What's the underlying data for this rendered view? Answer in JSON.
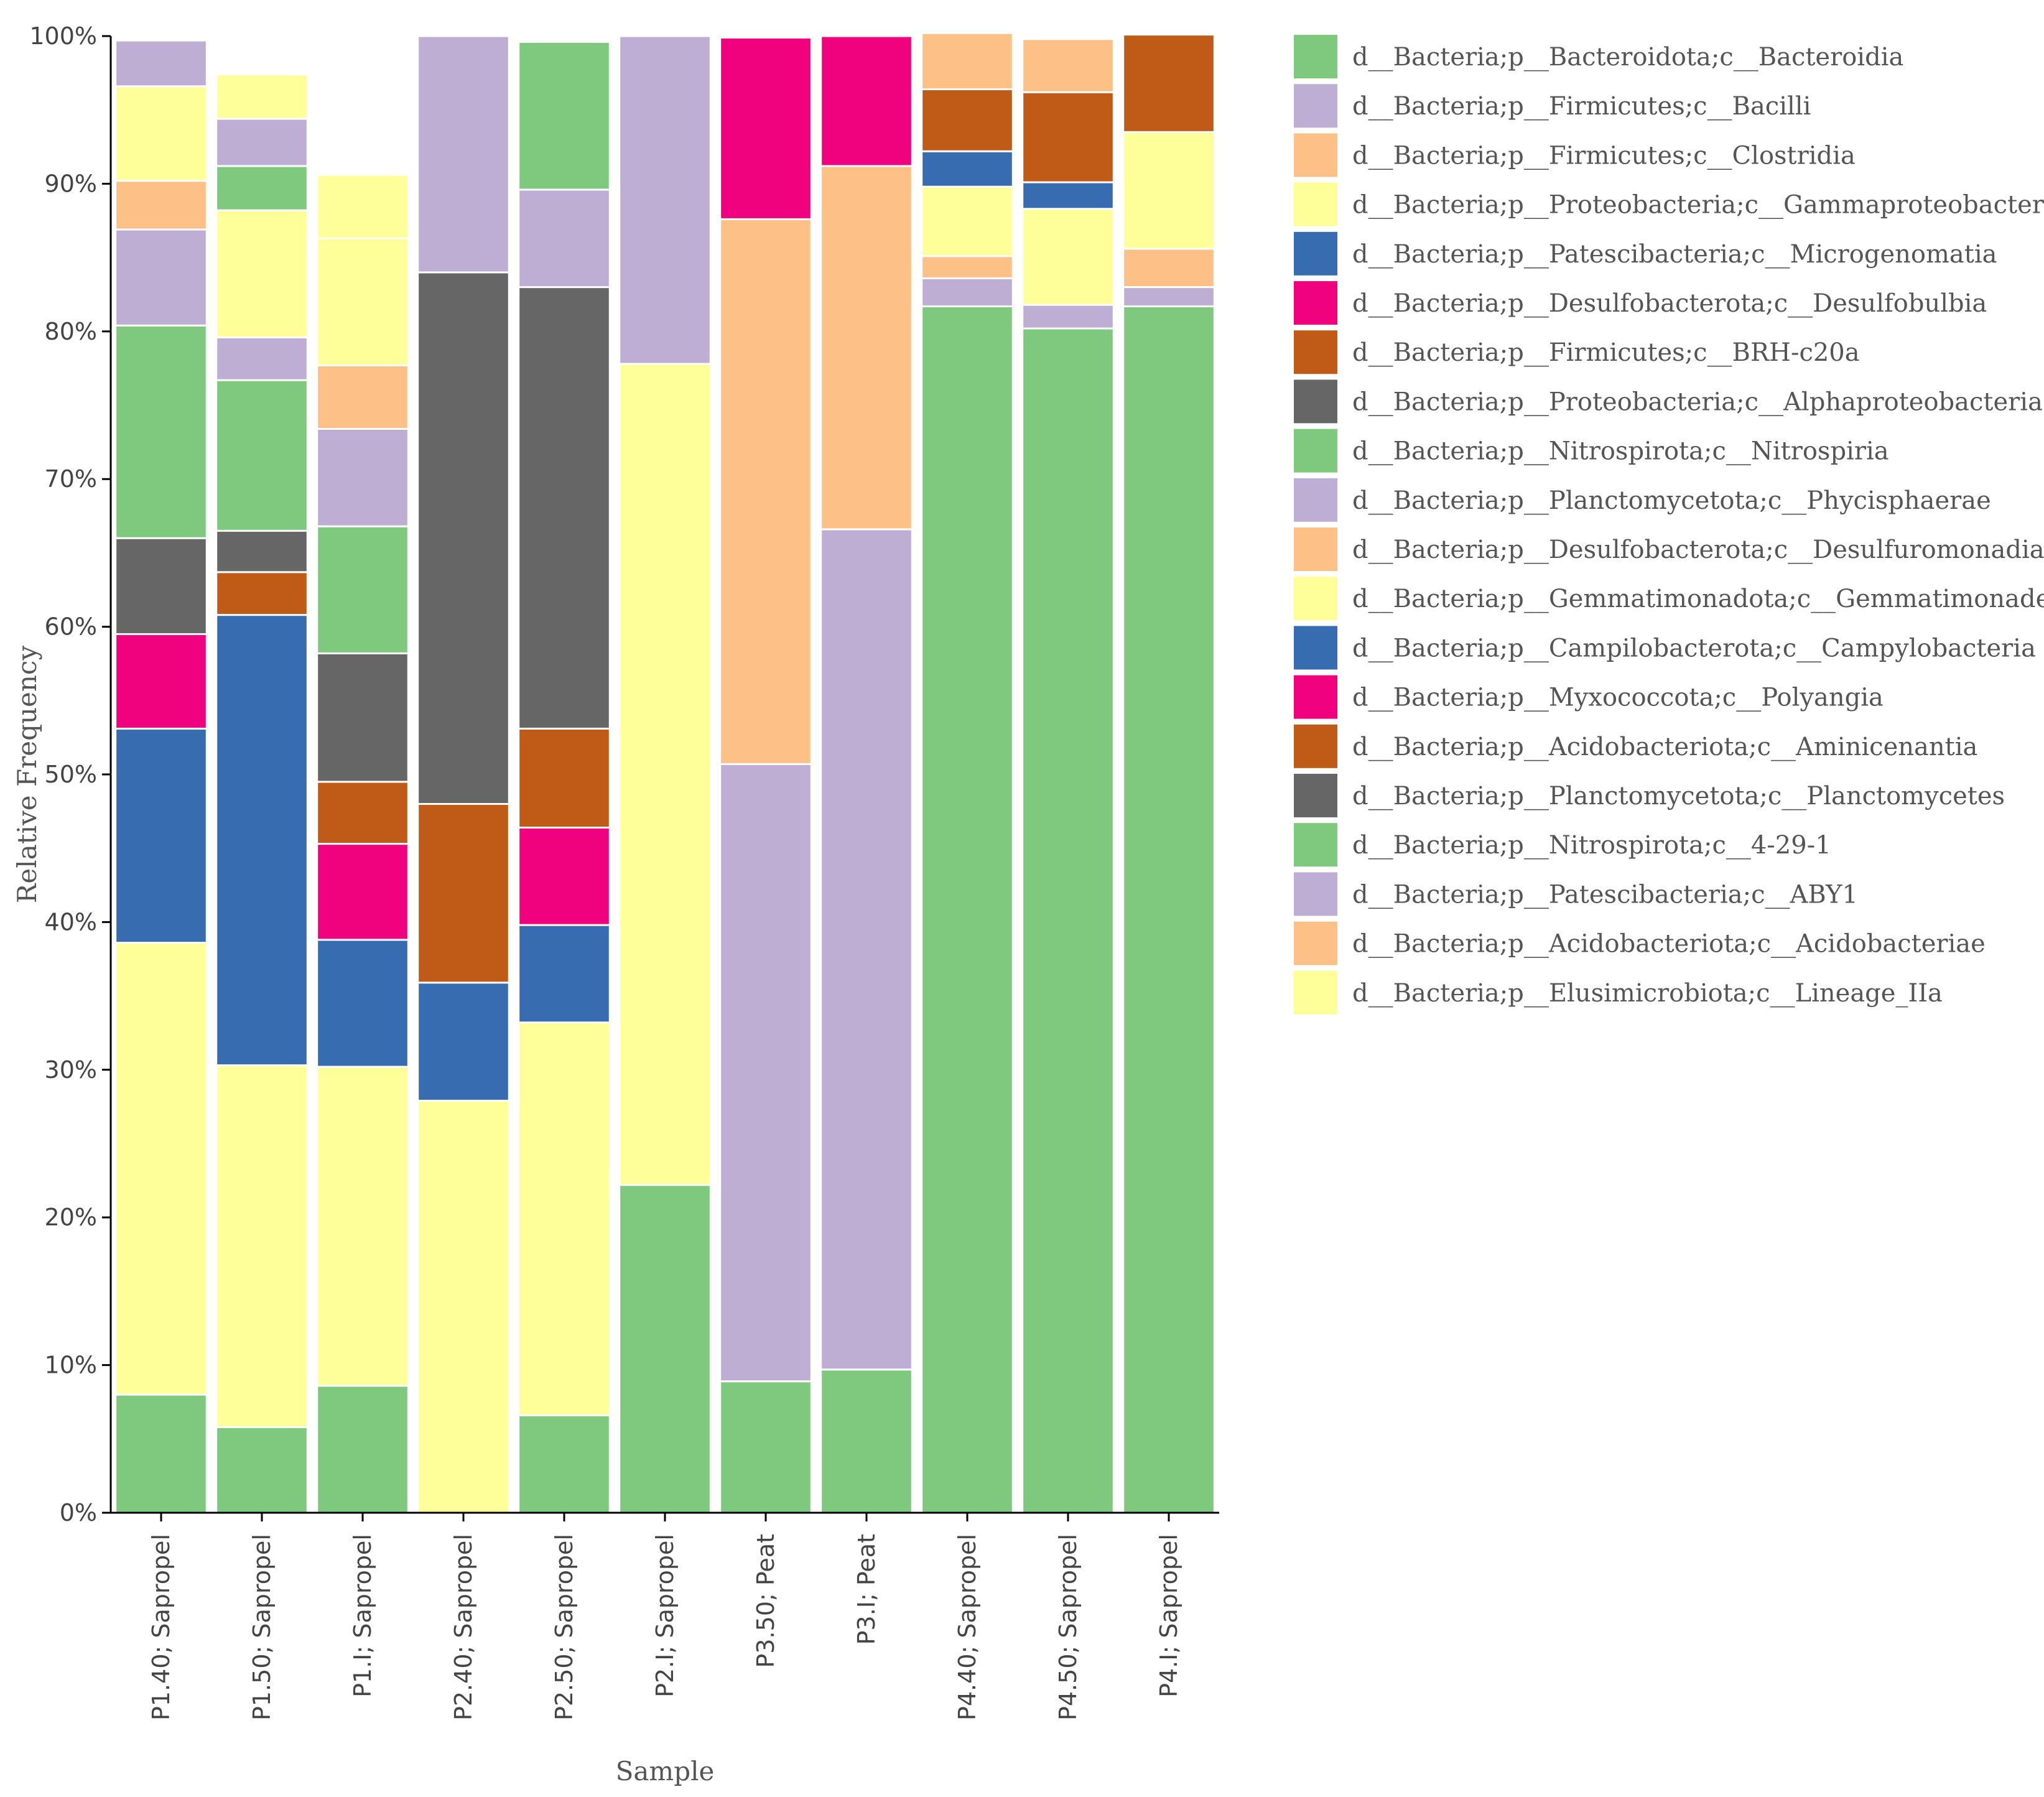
{
  "chart_data": {
    "type": "bar",
    "stacked": true,
    "xlabel": "Sample",
    "ylabel": "Relative Frequency",
    "ylim": [
      0,
      100
    ],
    "yticks": [
      "0%",
      "10%",
      "20%",
      "30%",
      "40%",
      "50%",
      "60%",
      "70%",
      "80%",
      "90%",
      "100%"
    ],
    "categories": [
      "P1.40; Sapropel",
      "P1.50; Sapropel",
      "P1.I; Sapropel",
      "P2.40; Sapropel",
      "P2.50; Sapropel",
      "P2.I; Sapropel",
      "P3.50; Peat",
      "P3.I; Peat",
      "P4.40; Sapropel",
      "P4.50; Sapropel",
      "P4.I; Sapropel"
    ],
    "series": [
      {
        "name": "d__Bacteria;p__Bacteroidota;c__Bacteroidia",
        "color": "#7fc97f",
        "values": [
          8.0,
          5.8,
          8.6,
          0.0,
          6.6,
          22.2,
          8.9,
          9.7,
          81.7,
          80.2,
          81.7
        ]
      },
      {
        "name": "d__Bacteria;p__Firmicutes;c__Bacilli",
        "color": "#beaed4",
        "values": [
          0.0,
          0.0,
          0.0,
          0.0,
          0.0,
          0.0,
          41.8,
          56.9,
          1.9,
          1.6,
          1.3
        ]
      },
      {
        "name": "d__Bacteria;p__Firmicutes;c__Clostridia",
        "color": "#fdc086",
        "values": [
          0.0,
          0.0,
          0.0,
          0.0,
          0.0,
          0.0,
          36.9,
          24.6,
          1.5,
          0.0,
          2.6
        ]
      },
      {
        "name": "d__Bacteria;p__Proteobacteria;c__Gammaproteobacteria",
        "color": "#ffff99",
        "values": [
          30.6,
          24.5,
          21.6,
          27.9,
          26.6,
          55.6,
          0.0,
          0.0,
          4.7,
          6.5,
          7.9
        ]
      },
      {
        "name": "d__Bacteria;p__Patescibacteria;c__Microgenomatia",
        "color": "#386cb0",
        "values": [
          14.5,
          30.5,
          8.6,
          8.0,
          6.6,
          0.0,
          0.0,
          0.0,
          2.4,
          1.8,
          0.0
        ]
      },
      {
        "name": "d__Bacteria;p__Desulfobacterota;c__Desulfobulbia",
        "color": "#f0027f",
        "values": [
          6.4,
          0.0,
          6.5,
          0.0,
          6.6,
          0.0,
          12.3,
          8.8,
          0.0,
          0.0,
          0.0
        ]
      },
      {
        "name": "d__Bacteria;p__Firmicutes;c__BRH-c20a",
        "color": "#bf5b17",
        "values": [
          0.0,
          2.9,
          4.2,
          12.1,
          6.7,
          0.0,
          0.0,
          0.0,
          4.2,
          6.1,
          6.6
        ]
      },
      {
        "name": "d__Bacteria;p__Proteobacteria;c__Alphaproteobacteria",
        "color": "#666666",
        "values": [
          6.5,
          2.8,
          8.7,
          36.0,
          29.9,
          0.0,
          0.0,
          0.0,
          0.0,
          0.0,
          0.0
        ]
      },
      {
        "name": "d__Bacteria;p__Nitrospirota;c__Nitrospiria",
        "color": "#7fc97f",
        "values": [
          14.4,
          10.2,
          8.6,
          0.0,
          0.0,
          0.0,
          0.0,
          0.0,
          0.0,
          0.0,
          0.0
        ]
      },
      {
        "name": "d__Bacteria;p__Planctomycetota;c__Phycisphaerae",
        "color": "#beaed4",
        "values": [
          6.5,
          2.9,
          6.6,
          16.0,
          6.6,
          22.2,
          0.0,
          0.0,
          0.0,
          0.0,
          0.0
        ]
      },
      {
        "name": "d__Bacteria;p__Desulfobacterota;c__Desulfuromonadia",
        "color": "#fdc086",
        "values": [
          3.3,
          0.0,
          4.3,
          0.0,
          0.0,
          0.0,
          0.0,
          0.0,
          3.8,
          3.6,
          0.0
        ]
      },
      {
        "name": "d__Bacteria;p__Gemmatimonadota;c__Gemmatimonadetes",
        "color": "#ffff99",
        "values": [
          6.4,
          8.6,
          8.6,
          0.0,
          0.0,
          0.0,
          0.0,
          0.0,
          0.0,
          0.0,
          0.0
        ]
      },
      {
        "name": "d__Bacteria;p__Campilobacterota;c__Campylobacteria",
        "color": "#386cb0",
        "values": [
          0.0,
          0.0,
          0.0,
          0.0,
          0.0,
          0.0,
          0.0,
          0.0,
          0.0,
          0.0,
          0.0
        ]
      },
      {
        "name": "d__Bacteria;p__Myxococcota;c__Polyangia",
        "color": "#f0027f",
        "values": [
          0.0,
          0.0,
          0.0,
          0.0,
          0.0,
          0.0,
          0.0,
          0.0,
          0.0,
          0.0,
          0.0
        ]
      },
      {
        "name": "d__Bacteria;p__Acidobacteriota;c__Aminicenantia",
        "color": "#bf5b17",
        "values": [
          0.0,
          0.0,
          0.0,
          0.0,
          0.0,
          0.0,
          0.0,
          0.0,
          0.0,
          0.0,
          0.0
        ]
      },
      {
        "name": "d__Bacteria;p__Planctomycetota;c__Planctomycetes",
        "color": "#666666",
        "values": [
          0.0,
          0.0,
          0.0,
          0.0,
          0.0,
          0.0,
          0.0,
          0.0,
          0.0,
          0.0,
          0.0
        ]
      },
      {
        "name": "d__Bacteria;p__Nitrospirota;c__4-29-1",
        "color": "#7fc97f",
        "values": [
          0.0,
          3.0,
          0.0,
          0.0,
          10.0,
          0.0,
          0.0,
          0.0,
          0.0,
          0.0,
          0.0
        ]
      },
      {
        "name": "d__Bacteria;p__Patescibacteria;c__ABY1",
        "color": "#beaed4",
        "values": [
          3.1,
          3.2,
          0.0,
          0.0,
          0.0,
          0.0,
          0.0,
          0.0,
          0.0,
          0.0,
          0.0
        ]
      },
      {
        "name": "d__Bacteria;p__Acidobacteriota;c__Acidobacteriae",
        "color": "#fdc086",
        "values": [
          0.0,
          0.0,
          0.0,
          0.0,
          0.0,
          0.0,
          0.0,
          0.0,
          0.0,
          0.0,
          0.0
        ]
      },
      {
        "name": "d__Bacteria;p__Elusimicrobiota;c__Lineage_IIa",
        "color": "#ffff99",
        "values": [
          0.0,
          3.0,
          4.3,
          0.0,
          0.0,
          0.0,
          0.0,
          0.0,
          0.0,
          0.0,
          0.0
        ]
      }
    ],
    "legend_position": "right"
  }
}
